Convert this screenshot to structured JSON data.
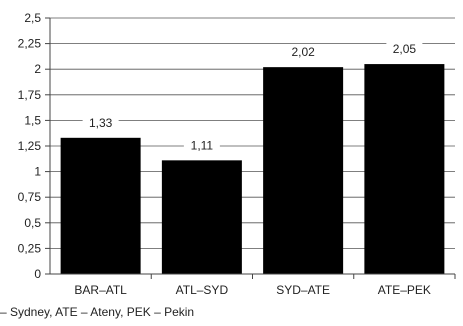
{
  "chart_data": {
    "type": "bar",
    "categories": [
      "BAR–ATL",
      "ATL–SYD",
      "SYD–ATE",
      "ATE–PEK"
    ],
    "values": [
      1.33,
      1.11,
      2.02,
      2.05
    ],
    "data_labels": [
      "1,33",
      "1,11",
      "2,02",
      "2,05"
    ],
    "ylim": [
      0,
      2.5
    ],
    "yticks": [
      0,
      0.25,
      0.5,
      0.75,
      1,
      1.25,
      1.5,
      1.75,
      2,
      2.25,
      2.5
    ],
    "ytick_labels": [
      "0",
      "0,25",
      "0,5",
      "0,75",
      "1",
      "1,25",
      "1,5",
      "1,75",
      "2",
      "2,25",
      "2,5"
    ],
    "grid": true,
    "bar_color": "#000000",
    "title": "",
    "xlabel": "",
    "ylabel": ""
  },
  "footnote": "– Sydney, ATE – Ateny, PEK – Pekin"
}
